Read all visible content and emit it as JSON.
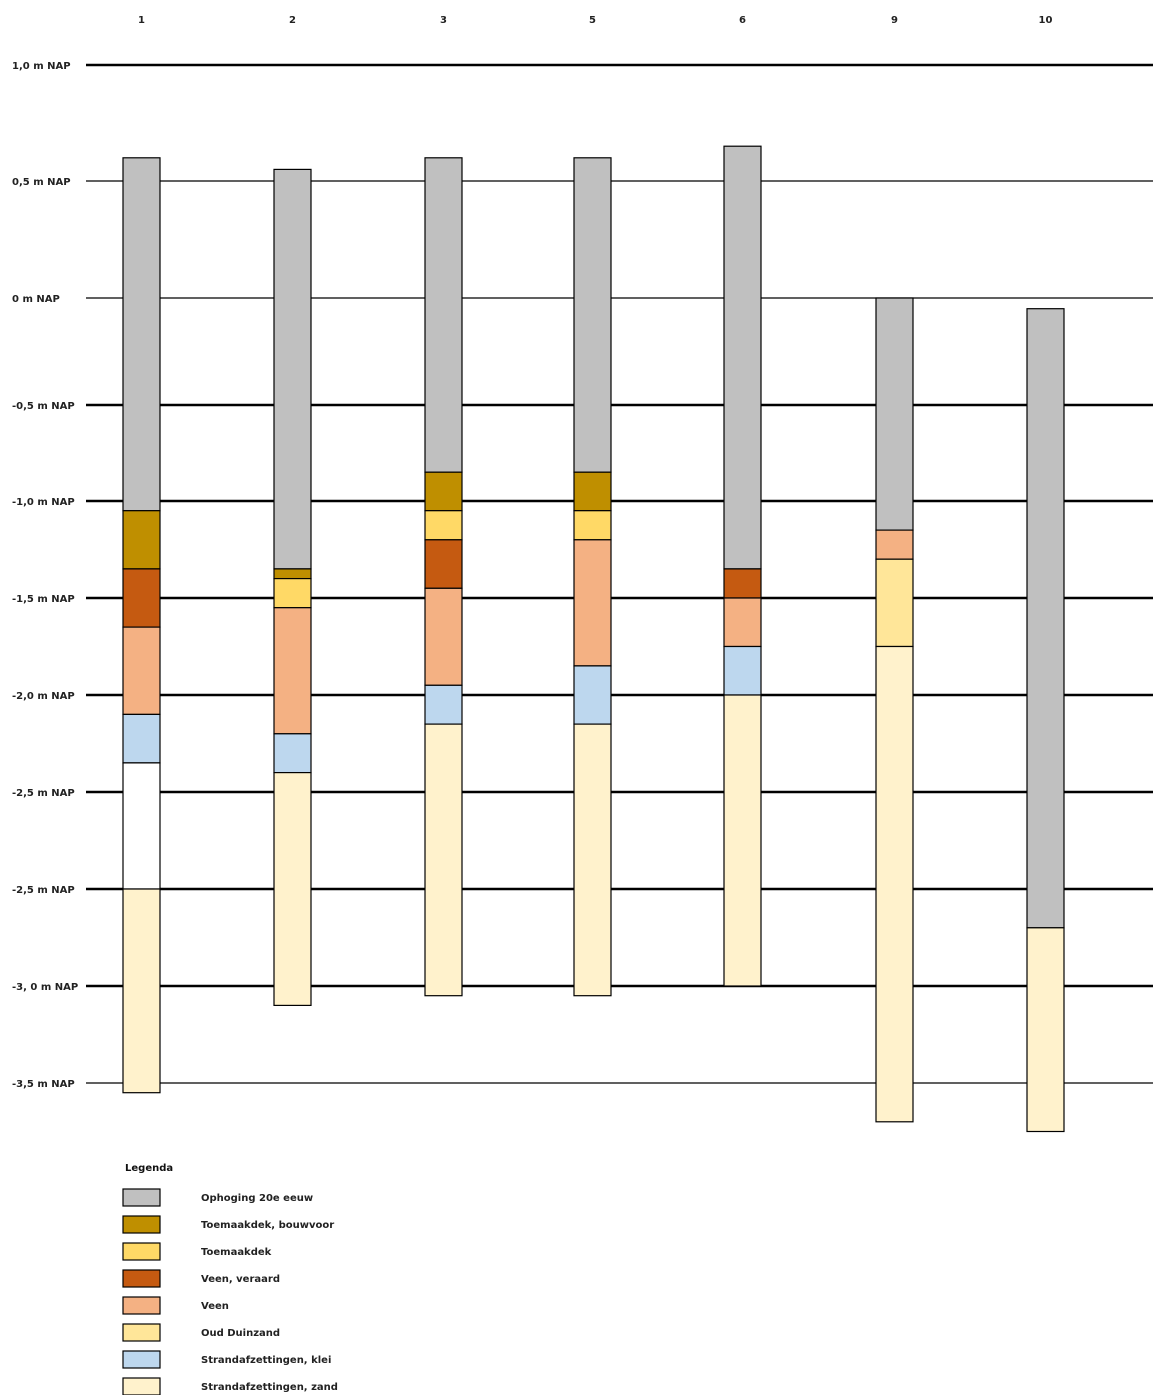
{
  "chart_data": {
    "type": "borehole-profile",
    "columns": [
      "1",
      "2",
      "3",
      "5",
      "6",
      "9",
      "10"
    ],
    "axis_labels": [
      "1,0 m NAP",
      "0,5 m NAP",
      "0 m NAP",
      "-0,5 m NAP",
      "-1,0 m NAP",
      "-1,5 m NAP",
      "-2,0 m NAP",
      "-2,5 m NAP",
      "-2,5 m NAP",
      "-3, 0 m NAP",
      "-3,5 m NAP"
    ],
    "legend_title": "Legenda",
    "layer_types": [
      {
        "key": "ophoging",
        "label": "Ophoging 20e eeuw",
        "color": "#c0c0c0"
      },
      {
        "key": "bouwvoor",
        "label": "Toemaakdek, bouwvoor",
        "color": "#bf8f00"
      },
      {
        "key": "toemaakdek",
        "label": "Toemaakdek",
        "color": "#ffd966"
      },
      {
        "key": "veen_veraard",
        "label": "Veen, veraard",
        "color": "#c55a11"
      },
      {
        "key": "veen",
        "label": "Veen",
        "color": "#f4b183"
      },
      {
        "key": "oud_duinzand",
        "label": "Oud Duinzand",
        "color": "#ffe699"
      },
      {
        "key": "klei",
        "label": "Strandafzettingen, klei",
        "color": "#bdd7ee"
      },
      {
        "key": "zand",
        "label": "Strandafzettingen, zand",
        "color": "#fff2cc"
      }
    ],
    "unlabeled_color": "#ffffff",
    "boreholes": [
      {
        "column": "1",
        "layers": [
          {
            "type": "ophoging",
            "top": 0.6,
            "bottom": -1.05
          },
          {
            "type": "bouwvoor",
            "top": -1.05,
            "bottom": -1.35
          },
          {
            "type": "veen_veraard",
            "top": -1.35,
            "bottom": -1.65
          },
          {
            "type": "veen",
            "top": -1.65,
            "bottom": -2.1
          },
          {
            "type": "klei",
            "top": -2.1,
            "bottom": -2.35
          },
          {
            "type": "unlabeled",
            "top": -2.35,
            "bottom": -2.75
          },
          {
            "type": "zand",
            "top": -2.75,
            "bottom": -3.55
          }
        ]
      },
      {
        "column": "2",
        "layers": [
          {
            "type": "ophoging",
            "top": 0.55,
            "bottom": -1.35
          },
          {
            "type": "bouwvoor",
            "top": -1.35,
            "bottom": -1.4
          },
          {
            "type": "toemaakdek",
            "top": -1.4,
            "bottom": -1.55
          },
          {
            "type": "veen",
            "top": -1.55,
            "bottom": -2.2
          },
          {
            "type": "klei",
            "top": -2.2,
            "bottom": -2.4
          },
          {
            "type": "zand",
            "top": -2.4,
            "bottom": -3.1
          }
        ]
      },
      {
        "column": "3",
        "layers": [
          {
            "type": "ophoging",
            "top": 0.6,
            "bottom": -0.85
          },
          {
            "type": "bouwvoor",
            "top": -0.85,
            "bottom": -1.05
          },
          {
            "type": "toemaakdek",
            "top": -1.05,
            "bottom": -1.2
          },
          {
            "type": "veen_veraard",
            "top": -1.2,
            "bottom": -1.45
          },
          {
            "type": "veen",
            "top": -1.45,
            "bottom": -1.95
          },
          {
            "type": "klei",
            "top": -1.95,
            "bottom": -2.15
          },
          {
            "type": "zand",
            "top": -2.15,
            "bottom": -3.05
          }
        ]
      },
      {
        "column": "5",
        "layers": [
          {
            "type": "ophoging",
            "top": 0.6,
            "bottom": -0.85
          },
          {
            "type": "bouwvoor",
            "top": -0.85,
            "bottom": -1.05
          },
          {
            "type": "toemaakdek",
            "top": -1.05,
            "bottom": -1.2
          },
          {
            "type": "veen",
            "top": -1.2,
            "bottom": -1.85
          },
          {
            "type": "klei",
            "top": -1.85,
            "bottom": -2.15
          },
          {
            "type": "zand",
            "top": -2.15,
            "bottom": -3.05
          }
        ]
      },
      {
        "column": "6",
        "layers": [
          {
            "type": "ophoging",
            "top": 0.65,
            "bottom": -1.35
          },
          {
            "type": "veen_veraard",
            "top": -1.35,
            "bottom": -1.5
          },
          {
            "type": "veen",
            "top": -1.5,
            "bottom": -1.75
          },
          {
            "type": "klei",
            "top": -1.75,
            "bottom": -2.0
          },
          {
            "type": "zand",
            "top": -2.0,
            "bottom": -3.0
          }
        ]
      },
      {
        "column": "9",
        "layers": [
          {
            "type": "ophoging",
            "top": 0.0,
            "bottom": -1.15
          },
          {
            "type": "veen",
            "top": -1.15,
            "bottom": -1.3
          },
          {
            "type": "oud_duinzand",
            "top": -1.3,
            "bottom": -1.75
          },
          {
            "type": "zand",
            "top": -1.75,
            "bottom": -3.7
          }
        ]
      },
      {
        "column": "10",
        "layers": [
          {
            "type": "ophoging",
            "top": -0.05,
            "bottom": -2.85
          },
          {
            "type": "zand",
            "top": -2.85,
            "bottom": -3.75
          }
        ]
      }
    ]
  }
}
